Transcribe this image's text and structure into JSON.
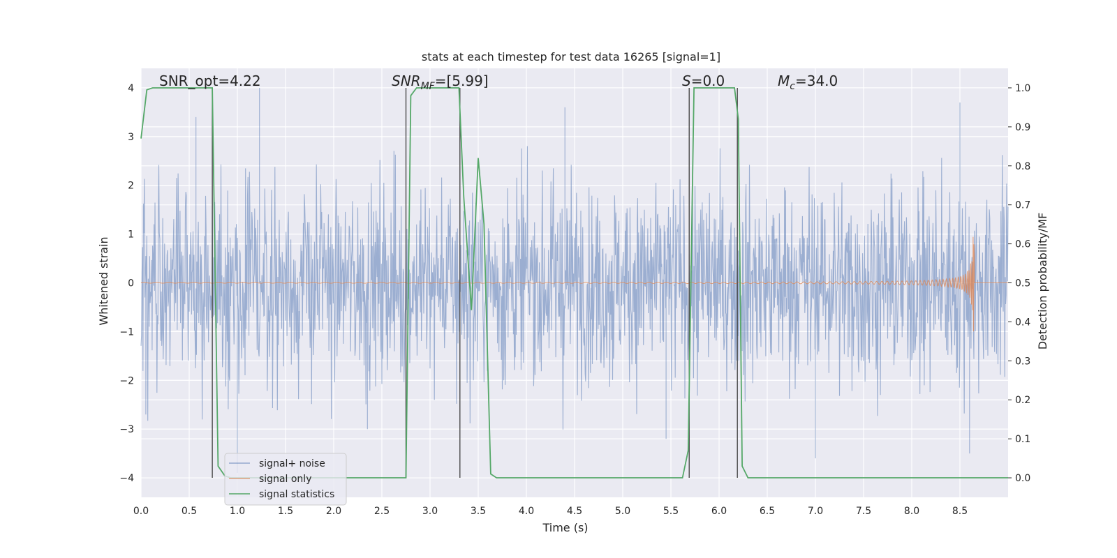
{
  "chart_data": {
    "type": "line",
    "title": "stats at each timestep for test data 16265 [signal=1]",
    "xlabel": "Time (s)",
    "ylabel_left": "Whitened strain",
    "ylabel_right": "Detection probability/MF",
    "xlim": [
      0.0,
      9.0
    ],
    "ylim_left": [
      -4.4,
      4.4
    ],
    "ylim_right": [
      -0.05,
      1.05
    ],
    "grid": true,
    "legend_position": "lower-left",
    "x_ticks": [
      "0.0",
      "0.5",
      "1.0",
      "1.5",
      "2.0",
      "2.5",
      "3.0",
      "3.5",
      "4.0",
      "4.5",
      "5.0",
      "5.5",
      "6.0",
      "6.5",
      "7.0",
      "7.5",
      "8.0",
      "8.5"
    ],
    "y_ticks_left": [
      "4",
      "3",
      "2",
      "1",
      "0",
      "−1",
      "−2",
      "−3",
      "−4"
    ],
    "y_ticks_right": [
      "1.0",
      "0.9",
      "0.8",
      "0.7",
      "0.6",
      "0.5",
      "0.4",
      "0.3",
      "0.2",
      "0.1",
      "0.0"
    ],
    "annotations": {
      "snr_opt": "SNR_opt=4.22",
      "snr_mf_main": "SNR",
      "snr_mf_sub": "MF",
      "snr_mf_rest": "=[5.99]",
      "s_main": "S",
      "s_rest": "=0.0",
      "mc_main": "M",
      "mc_sub": "c",
      "mc_rest": "=34.0"
    },
    "series": [
      {
        "name": "signal+ noise",
        "color": "#4c72b0",
        "axis": "left",
        "envelope_typical": 1.6,
        "peak_max": 4.0,
        "peak_min": -3.9,
        "sample_peaks": [
          [
            1.23,
            4.0
          ],
          [
            0.57,
            3.4
          ],
          [
            4.4,
            3.6
          ],
          [
            8.5,
            3.7
          ],
          [
            8.6,
            -3.5
          ],
          [
            1.0,
            -3.9
          ],
          [
            5.45,
            -3.2
          ],
          [
            7.0,
            -3.6
          ],
          [
            2.35,
            -3.0
          ],
          [
            0.05,
            -2.7
          ]
        ]
      },
      {
        "name": "signal only",
        "color": "#dd8452",
        "axis": "left",
        "description_points": [
          [
            0.0,
            0.0
          ],
          [
            6.0,
            0.01
          ],
          [
            7.0,
            0.03
          ],
          [
            8.0,
            0.15
          ],
          [
            8.5,
            0.45
          ],
          [
            8.65,
            1.0
          ],
          [
            8.66,
            0.0
          ]
        ]
      },
      {
        "name": "signal statistics",
        "color": "#55a868",
        "axis": "right",
        "points": [
          [
            0.0,
            0.87
          ],
          [
            0.06,
            0.995
          ],
          [
            0.12,
            1.0
          ],
          [
            0.7,
            1.0
          ],
          [
            0.74,
            1.0
          ],
          [
            0.8,
            0.03
          ],
          [
            0.87,
            0.005
          ],
          [
            0.93,
            0.0
          ],
          [
            2.75,
            0.0
          ],
          [
            2.8,
            0.98
          ],
          [
            2.86,
            1.0
          ],
          [
            3.3,
            1.0
          ],
          [
            3.35,
            0.72
          ],
          [
            3.43,
            0.43
          ],
          [
            3.5,
            0.82
          ],
          [
            3.56,
            0.65
          ],
          [
            3.63,
            0.01
          ],
          [
            3.69,
            0.0
          ],
          [
            5.62,
            0.0
          ],
          [
            5.68,
            0.07
          ],
          [
            5.74,
            1.0
          ],
          [
            6.16,
            1.0
          ],
          [
            6.2,
            0.92
          ],
          [
            6.24,
            0.03
          ],
          [
            6.3,
            0.0
          ],
          [
            9.0,
            0.0
          ]
        ]
      }
    ],
    "vertical_markers": [
      0.74,
      2.75,
      3.31,
      5.69,
      6.19
    ]
  }
}
